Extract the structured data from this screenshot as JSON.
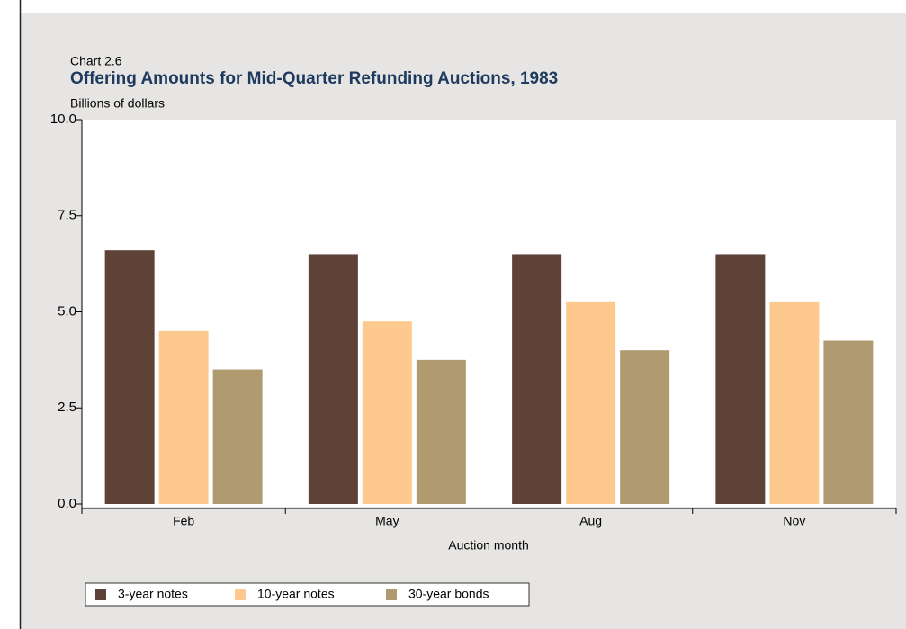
{
  "chart_data": {
    "type": "bar",
    "label": "Chart 2.6",
    "title": "Offering Amounts for Mid-Quarter Refunding Auctions, 1983",
    "y_label": "Billions of dollars",
    "x_label": "Auction month",
    "categories": [
      "Feb",
      "May",
      "Aug",
      "Nov"
    ],
    "series": [
      {
        "name": "3-year notes",
        "color": "#5e4238",
        "values": [
          6.6,
          6.5,
          6.5,
          6.5
        ]
      },
      {
        "name": "10-year notes",
        "color": "#fdc98f",
        "values": [
          4.5,
          4.75,
          5.25,
          5.25
        ]
      },
      {
        "name": "30-year bonds",
        "color": "#b09a70",
        "values": [
          3.5,
          3.75,
          4.0,
          4.25
        ]
      }
    ],
    "ylim": [
      0,
      10
    ],
    "yticks": [
      {
        "value": 0,
        "label": "0.0"
      },
      2.5,
      {
        "value": 5,
        "label": "5.0"
      },
      7.5,
      {
        "value": 10,
        "label": "10.0"
      }
    ],
    "legend": "bottom-left"
  }
}
